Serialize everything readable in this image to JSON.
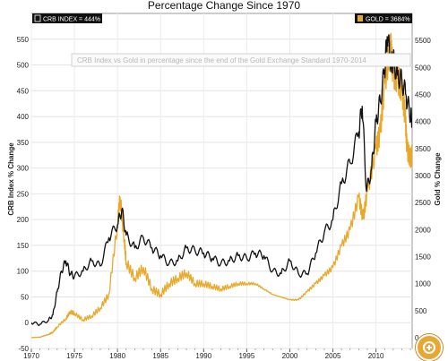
{
  "chart_data": {
    "type": "line",
    "title": "Percentage Change Since 1970",
    "annotation": "CRB Index vs Gold in percentage since the end of the Gold Exchange Standard 1970-2014",
    "ylabel_left": "CRB Index  % Change",
    "ylabel_right": "Gold  % Change",
    "x_ticks": [
      "1970",
      "1975",
      "1980",
      "1985",
      "1990",
      "1995",
      "2000",
      "2005",
      "2010"
    ],
    "left_ticks": [
      "-50",
      "0",
      "50",
      "100",
      "150",
      "200",
      "250",
      "300",
      "350",
      "400",
      "450",
      "500",
      "550"
    ],
    "right_ticks": [
      "0",
      "500",
      "1000",
      "1500",
      "2000",
      "2500",
      "3000",
      "3500",
      "4000",
      "4500",
      "5000",
      "5500"
    ],
    "xlim": [
      1970,
      2014.2
    ],
    "ylim_left": [
      -50,
      600
    ],
    "ylim_right": [
      -200,
      6000
    ],
    "legend": [
      {
        "label": "CRB INDEX = 444%",
        "color": "#111111",
        "position": "top-left"
      },
      {
        "label": "GOLD = 3684%",
        "color": "#e8a92a",
        "position": "top-right"
      }
    ],
    "series": [
      {
        "name": "CRB INDEX",
        "axis": "left",
        "color": "#111111",
        "x": [
          1970,
          1971,
          1972,
          1972.5,
          1973,
          1973.5,
          1974,
          1974.5,
          1975,
          1976,
          1977,
          1978,
          1979,
          1980,
          1980.5,
          1981,
          1982,
          1983,
          1984,
          1985,
          1986,
          1987,
          1988,
          1989,
          1990,
          1991,
          1992,
          1993,
          1994,
          1995,
          1996,
          1997,
          1998,
          1999,
          2000,
          2001,
          2002,
          2003,
          2004,
          2005,
          2006,
          2007,
          2008,
          2008.4,
          2008.9,
          2009.5,
          2010,
          2010.5,
          2011,
          2011.3,
          2011.8,
          2012,
          2012.5,
          2013,
          2013.5,
          2014,
          2014.2
        ],
        "y": [
          0,
          -3,
          5,
          15,
          60,
          100,
          120,
          95,
          90,
          100,
          120,
          110,
          165,
          190,
          220,
          170,
          145,
          165,
          145,
          130,
          115,
          120,
          145,
          140,
          135,
          125,
          115,
          120,
          130,
          125,
          135,
          130,
          100,
          95,
          120,
          95,
          95,
          135,
          175,
          200,
          270,
          310,
          370,
          420,
          255,
          300,
          390,
          430,
          490,
          555,
          500,
          510,
          480,
          470,
          440,
          400,
          395
        ]
      },
      {
        "name": "GOLD",
        "axis": "right",
        "color": "#e8a92a",
        "x": [
          1970,
          1971,
          1972,
          1972.5,
          1973,
          1974,
          1974.5,
          1975,
          1976,
          1977,
          1978,
          1979,
          1980,
          1980.3,
          1980.8,
          1981,
          1982,
          1983,
          1984,
          1985,
          1986,
          1987,
          1988,
          1989,
          1990,
          1991,
          1992,
          1993,
          1994,
          1995,
          1996,
          1997,
          1998,
          1999,
          2000,
          2001,
          2002,
          2003,
          2004,
          2005,
          2006,
          2007,
          2008,
          2008.5,
          2009,
          2010,
          2010.5,
          2011,
          2011.7,
          2012,
          2012.5,
          2013,
          2013.4,
          2013.6,
          2014,
          2014.2
        ],
        "y": [
          0,
          10,
          60,
          100,
          200,
          350,
          480,
          450,
          330,
          400,
          550,
          800,
          2100,
          2600,
          1800,
          1400,
          1100,
          1300,
          900,
          800,
          1000,
          1100,
          1200,
          1000,
          1000,
          950,
          900,
          950,
          1000,
          1000,
          1000,
          900,
          800,
          750,
          700,
          700,
          850,
          1000,
          1150,
          1300,
          1700,
          2000,
          2600,
          2200,
          2700,
          3500,
          3800,
          4700,
          5400,
          4900,
          4800,
          4600,
          4100,
          3500,
          3300,
          3400
        ]
      }
    ]
  },
  "ui": {
    "zoom_button_icon": "zoom-in-icon"
  }
}
